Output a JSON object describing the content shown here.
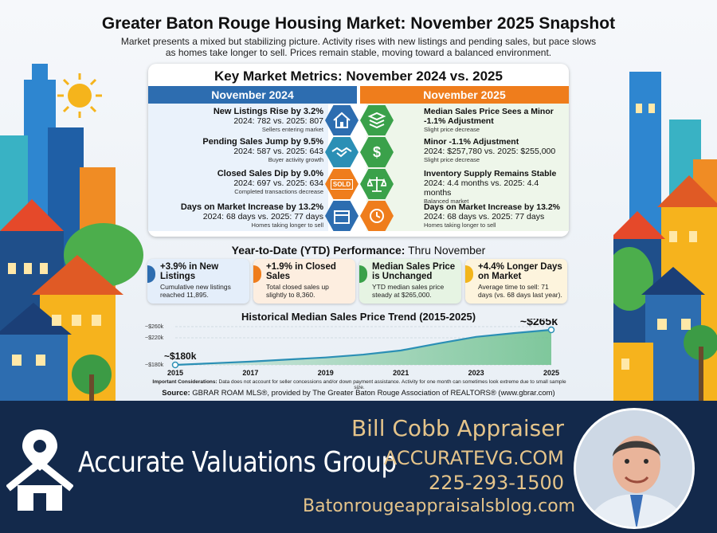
{
  "header": {
    "title": "Greater Baton Rouge Housing Market: November 2025 Snapshot",
    "subtitle": "Market presents a mixed but stabilizing picture. Activity rises with new listings and pending sales, but pace slows as homes take longer to sell. Prices remain stable, moving toward a balanced environment."
  },
  "metrics": {
    "title": "Key Market Metrics: November 2024 vs. 2025",
    "left_header": "November 2024",
    "right_header": "November 2025",
    "left_rows": [
      {
        "heading": "New Listings Rise by 3.2%",
        "value": "2024: 782 vs. 2025: 807",
        "note": "Sellers entering market"
      },
      {
        "heading": "Pending Sales Jump by 9.5%",
        "value": "2024: 587 vs. 2025: 643",
        "note": "Buyer activity growth"
      },
      {
        "heading": "Closed Sales Dip by 9.0%",
        "value": "2024: 697 vs. 2025: 634",
        "note": "Completed transactions decrease"
      },
      {
        "heading": "Days on Market Increase by 13.2%",
        "value": "2024: 68 days vs. 2025: 77 days",
        "note": "Homes taking longer to sell"
      }
    ],
    "right_rows": [
      {
        "heading": "Median Sales Price Sees a Minor -1.1% Adjustment",
        "value": "",
        "note": "Slight price decrease"
      },
      {
        "heading": "Minor -1.1% Adjustment",
        "value": "2024: $257,780 vs. 2025: $255,000",
        "note": "Slight price decrease"
      },
      {
        "heading": "Inventory Supply Remains Stable",
        "value": "2024: 4.4 months vs. 2025: 4.4 months",
        "note": "Balanced market"
      },
      {
        "heading": "Days on Market Increase by 13.2%",
        "value": "2024: 68 days vs. 2025: 77 days",
        "note": "Homes taking longer to sell"
      }
    ],
    "icons": [
      "house-icon",
      "stack-icon",
      "handshake-icon",
      "dollar-icon",
      "sold-sign-icon",
      "scales-icon",
      "calendar-icon",
      "clock-icon"
    ],
    "sold_label": "SOLD",
    "dollar_glyph": "$"
  },
  "ytd": {
    "title_bold": "Year-to-Date (YTD) Performance:",
    "title_rest": " Thru November",
    "cards": [
      {
        "heading": "+3.9% in New Listings",
        "desc": "Cumulative new listings reached 11,895.",
        "color": "#2d6db0",
        "bg": "#e4eefa"
      },
      {
        "heading": "+1.9% in Closed Sales",
        "desc": "Total closed sales up slightly to 8,360.",
        "color": "#ef7d1c",
        "bg": "#fdeee0"
      },
      {
        "heading": "Median Sales Price is Unchanged",
        "desc": "YTD median sales price steady at $265,000.",
        "color": "#3aa14a",
        "bg": "#e6f4e3"
      },
      {
        "heading": "+4.4% Longer Days on Market",
        "desc": "Average time to sell: 71 days (vs. 68 days last year).",
        "color": "#f2b51c",
        "bg": "#fdf4dd"
      }
    ]
  },
  "chart_data": {
    "type": "area",
    "title": "Historical Median Sales Price Trend (2015-2025)",
    "x": [
      2015,
      2016,
      2017,
      2018,
      2019,
      2020,
      2021,
      2022,
      2023,
      2024,
      2025
    ],
    "xticks": [
      "2015",
      "2017",
      "2019",
      "2021",
      "2023",
      "2025"
    ],
    "yticks": [
      "~$260k",
      "~$220k",
      "~$180k"
    ],
    "values": [
      180,
      184,
      188,
      193,
      198,
      205,
      215,
      232,
      248,
      257,
      265
    ],
    "ylim": [
      180,
      265
    ],
    "start_label": "~$180k",
    "end_label": "~$265k",
    "colors": {
      "line": "#2b8fb5",
      "fill_start": "#cfe6e0",
      "fill_end": "#6cc08c"
    }
  },
  "considerations": {
    "label": "Important Considerations:",
    "text": " Data does not account for seller concessions and/or down payment assistance. Activity for one month can sometimes look extreme due to small sample size."
  },
  "source": {
    "label": "Source:",
    "text": " GBRAR ROAM MLS®, provided by The Greater Baton Rouge Association of REALTORS® (www.gbrar.com)"
  },
  "footer": {
    "brand": "Accurate Valuations Group",
    "name": "Bill Cobb Appraiser",
    "website": "ACCURATEVG.COM",
    "phone": "225-293-1500",
    "blog": "Batonrougeappraisalsblog.com",
    "logo_icon": "house-pin-icon"
  }
}
